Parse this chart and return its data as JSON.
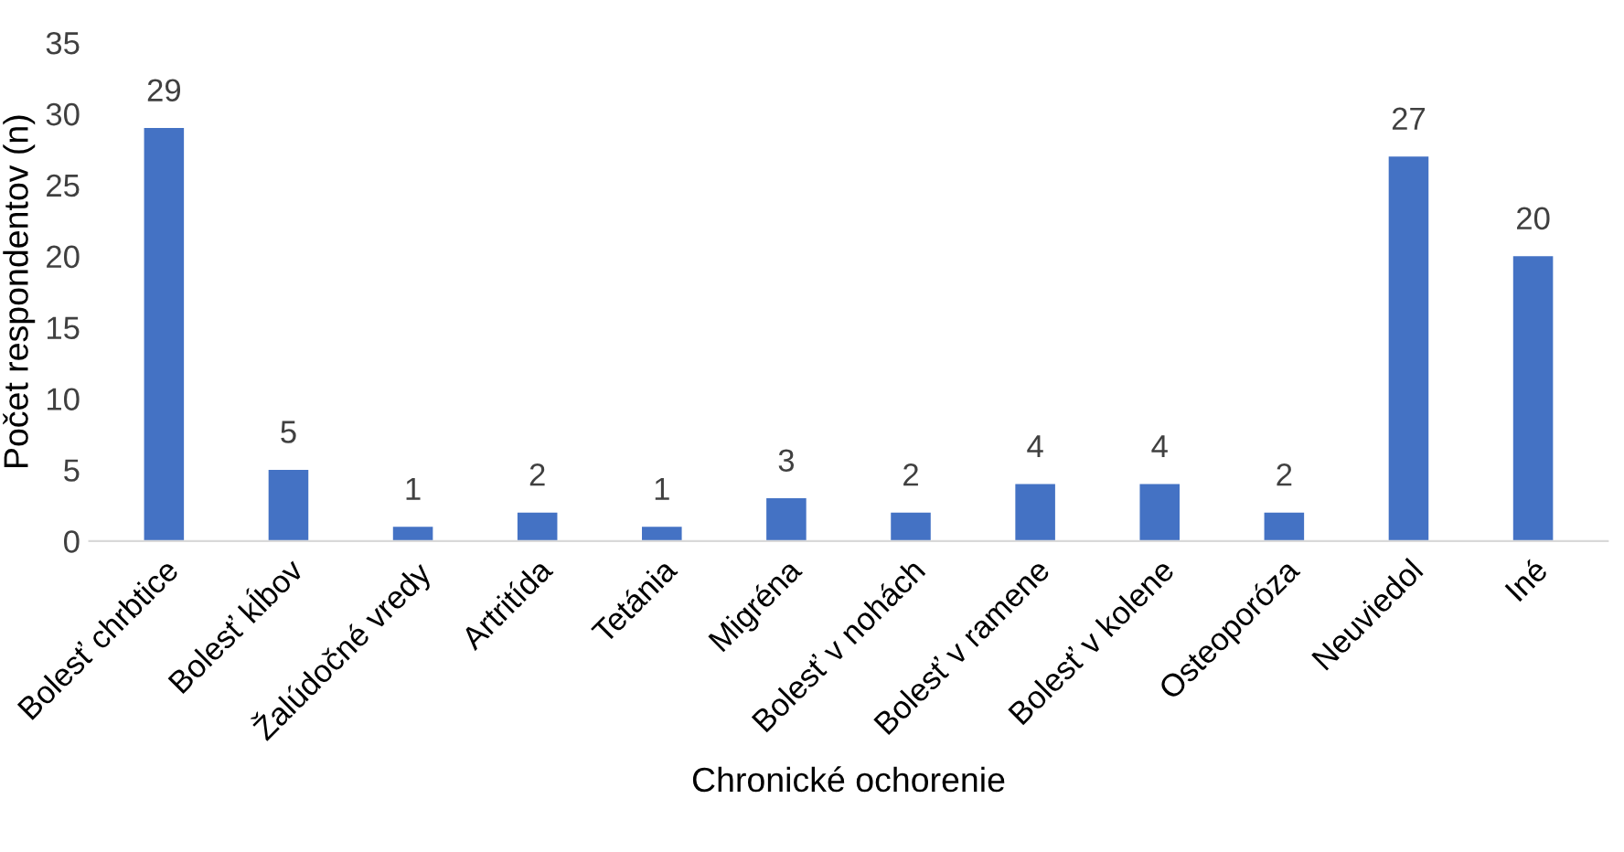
{
  "chart_data": {
    "type": "bar",
    "xlabel": "Chronické ochorenie",
    "ylabel": "Počet respondentov (n)",
    "categories": [
      "Bolesť chrbtice",
      "Bolesť kĺbov",
      "Žalúdočné vredy",
      "Artritída",
      "Tetánia",
      "Migréna",
      "Bolesť v nohách",
      "Bolesť v ramene",
      "Bolesť v kolene",
      "Osteoporóza",
      "Neuviedol",
      "Iné"
    ],
    "values": [
      29,
      5,
      1,
      2,
      1,
      3,
      2,
      4,
      4,
      2,
      27,
      20
    ],
    "color": "#4472c4",
    "ylim": [
      0,
      35
    ],
    "yticks": [
      0,
      5,
      10,
      15,
      20,
      25,
      30,
      35
    ],
    "data_labels": true,
    "grid": false,
    "legend": false
  }
}
